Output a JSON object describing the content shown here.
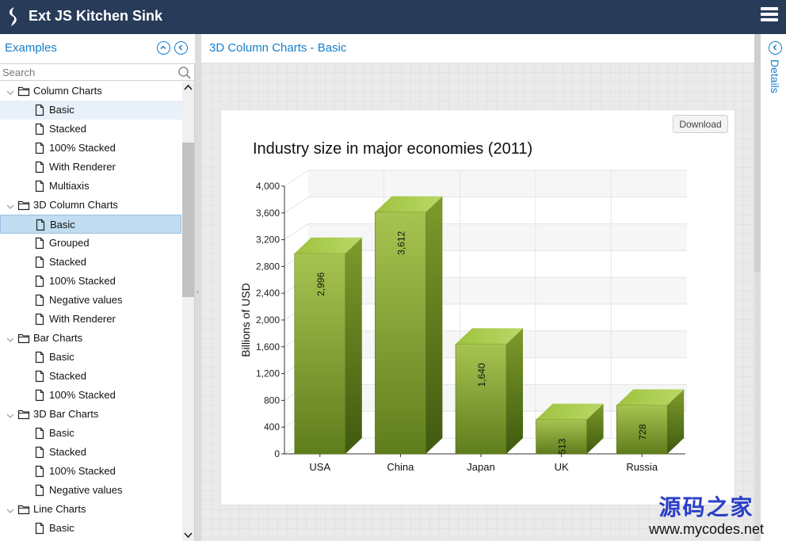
{
  "header": {
    "title": "Ext JS Kitchen Sink",
    "logo_icon": "sencha-logo-icon",
    "menu_icon": "hamburger-icon"
  },
  "left": {
    "title": "Examples",
    "search_placeholder": "Search",
    "tree": [
      {
        "label": "Column Charts",
        "type": "folder"
      },
      {
        "label": "Basic",
        "type": "leaf",
        "state": "hover"
      },
      {
        "label": "Stacked",
        "type": "leaf"
      },
      {
        "label": "100% Stacked",
        "type": "leaf"
      },
      {
        "label": "With Renderer",
        "type": "leaf"
      },
      {
        "label": "Multiaxis",
        "type": "leaf"
      },
      {
        "label": "3D Column Charts",
        "type": "folder"
      },
      {
        "label": "Basic",
        "type": "leaf",
        "state": "selected"
      },
      {
        "label": "Grouped",
        "type": "leaf"
      },
      {
        "label": "Stacked",
        "type": "leaf"
      },
      {
        "label": "100% Stacked",
        "type": "leaf"
      },
      {
        "label": "Negative values",
        "type": "leaf"
      },
      {
        "label": "With Renderer",
        "type": "leaf"
      },
      {
        "label": "Bar Charts",
        "type": "folder"
      },
      {
        "label": "Basic",
        "type": "leaf"
      },
      {
        "label": "Stacked",
        "type": "leaf"
      },
      {
        "label": "100% Stacked",
        "type": "leaf"
      },
      {
        "label": "3D Bar Charts",
        "type": "folder"
      },
      {
        "label": "Basic",
        "type": "leaf"
      },
      {
        "label": "Stacked",
        "type": "leaf"
      },
      {
        "label": "100% Stacked",
        "type": "leaf"
      },
      {
        "label": "Negative values",
        "type": "leaf"
      },
      {
        "label": "Line Charts",
        "type": "folder"
      },
      {
        "label": "Basic",
        "type": "leaf"
      }
    ]
  },
  "center": {
    "title": "3D Column Charts - Basic",
    "download_label": "Download"
  },
  "right": {
    "details_label": "Details"
  },
  "watermark": {
    "cn": "源码之家",
    "url": "www.mycodes.net"
  },
  "chart_data": {
    "type": "bar",
    "title": "Industry size in major economies (2011)",
    "ylabel": "Billions of USD",
    "xlabel": "",
    "categories": [
      "USA",
      "China",
      "Japan",
      "UK",
      "Russia"
    ],
    "values": [
      2996,
      3612,
      1640,
      513,
      728
    ],
    "data_labels": [
      "2,996",
      "3,612",
      "1,640",
      "513",
      "728"
    ],
    "ylim": [
      0,
      4000
    ],
    "yticks": [
      "0",
      "400",
      "800",
      "1,200",
      "1,600",
      "2,000",
      "2,400",
      "2,800",
      "3,200",
      "3,600",
      "4,000"
    ],
    "grid": true,
    "style": "3d-column",
    "bar_color": "#8aab32"
  }
}
